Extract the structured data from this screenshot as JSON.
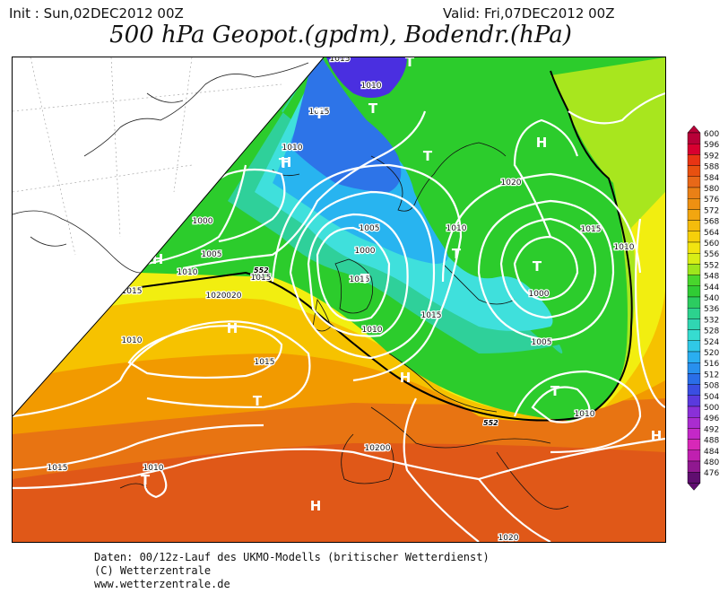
{
  "header": {
    "init": "Init : Sun,02DEC2012 00Z",
    "valid": "Valid: Fri,07DEC2012 00Z",
    "title": "500 hPa Geopot.(gpdm), Bodendr.(hPa)"
  },
  "map": {
    "region": "North Atlantic and Europe",
    "pressure_centers": [
      {
        "label": "H",
        "kind": "high"
      },
      {
        "label": "H",
        "kind": "high"
      },
      {
        "label": "H",
        "kind": "high"
      },
      {
        "label": "H",
        "kind": "high"
      },
      {
        "label": "H",
        "kind": "high"
      },
      {
        "label": "H",
        "kind": "high"
      },
      {
        "label": "H",
        "kind": "high"
      },
      {
        "label": "T",
        "kind": "low"
      },
      {
        "label": "T",
        "kind": "low"
      },
      {
        "label": "T",
        "kind": "low"
      },
      {
        "label": "T",
        "kind": "low"
      },
      {
        "label": "T",
        "kind": "low"
      },
      {
        "label": "T",
        "kind": "low"
      },
      {
        "label": "T",
        "kind": "low"
      },
      {
        "label": "T",
        "kind": "low"
      },
      {
        "label": "T",
        "kind": "low"
      },
      {
        "label": "T",
        "kind": "low"
      },
      {
        "label": "T",
        "kind": "low"
      }
    ],
    "isobar_labels": [
      "1015",
      "1010",
      "1015",
      "1010",
      "1000",
      "1005",
      "1010",
      "1015",
      "1020",
      "1015",
      "1020",
      "1015",
      "1010",
      "1015",
      "1005",
      "1000",
      "1010",
      "1015",
      "1020",
      "1015",
      "1010",
      "1020",
      "1005",
      "1000",
      "1010",
      "1020",
      "1015",
      "1010",
      "1010",
      "1020"
    ],
    "height_contour_labels": [
      "552",
      "552"
    ],
    "fill_colors": {
      "deep_blue": "#4a2fe0",
      "blue": "#2d74e8",
      "light_blue": "#28b4f0",
      "cyan": "#3fe0dc",
      "teal": "#2fd09a",
      "green": "#2ccc2c",
      "lime": "#a8e61e",
      "yellow": "#f2ee10",
      "light_orange": "#f6c200",
      "orange": "#f29a00",
      "dark_orange": "#e87412",
      "red_orange": "#e05818"
    }
  },
  "legend": {
    "levels": [
      "600",
      "596",
      "592",
      "588",
      "584",
      "580",
      "576",
      "572",
      "568",
      "564",
      "560",
      "556",
      "552",
      "548",
      "544",
      "540",
      "536",
      "532",
      "528",
      "524",
      "520",
      "516",
      "512",
      "508",
      "504",
      "500",
      "496",
      "492",
      "488",
      "484",
      "480",
      "476"
    ],
    "colors": [
      "#b80038",
      "#d80030",
      "#e83414",
      "#e85010",
      "#e86818",
      "#ea8016",
      "#ee9012",
      "#f2a610",
      "#f4bc0c",
      "#f6d00a",
      "#f2e410",
      "#d8ee16",
      "#9ee61c",
      "#48d62c",
      "#30cc34",
      "#2ccc60",
      "#2cd28e",
      "#30d6b2",
      "#36dcd0",
      "#30c8e6",
      "#2aaef0",
      "#2890ee",
      "#2a6ee8",
      "#3a4ee2",
      "#5a3ade",
      "#8a30d8",
      "#aa2cd0",
      "#c428c8",
      "#d828b8",
      "#c020b0",
      "#901890",
      "#600e70"
    ]
  },
  "credits": {
    "line1": "Daten: 00/12z-Lauf des UKMO-Modells (britischer Wetterdienst)",
    "line2": "(C) Wetterzentrale",
    "line3": "www.wetterzentrale.de"
  }
}
